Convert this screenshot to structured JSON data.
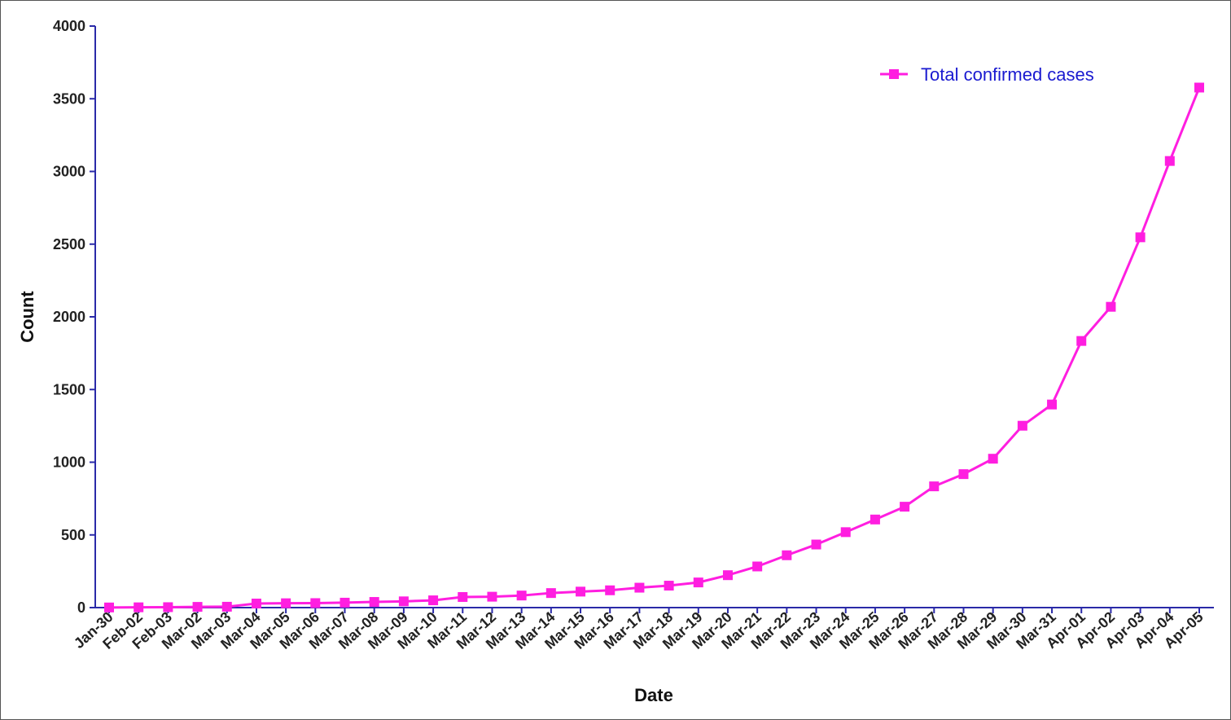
{
  "chart_data": {
    "type": "line",
    "title": "",
    "xlabel": "Date",
    "ylabel": "Count",
    "ylim": [
      0,
      4000
    ],
    "y_ticks": [
      0,
      500,
      1000,
      1500,
      2000,
      2500,
      3000,
      3500,
      4000
    ],
    "grid": false,
    "legend_position": "top-right",
    "axis_color": "#2a2aa8",
    "legend_text_color": "#1a1ad0",
    "categories": [
      "Jan-30",
      "Feb-02",
      "Feb-03",
      "Mar-02",
      "Mar-03",
      "Mar-04",
      "Mar-05",
      "Mar-06",
      "Mar-07",
      "Mar-08",
      "Mar-09",
      "Mar-10",
      "Mar-11",
      "Mar-12",
      "Mar-13",
      "Mar-14",
      "Mar-15",
      "Mar-16",
      "Mar-17",
      "Mar-18",
      "Mar-19",
      "Mar-20",
      "Mar-21",
      "Mar-22",
      "Mar-23",
      "Mar-24",
      "Mar-25",
      "Mar-26",
      "Mar-27",
      "Mar-28",
      "Mar-29",
      "Mar-30",
      "Mar-31",
      "Apr-01",
      "Apr-02",
      "Apr-03",
      "Apr-04",
      "Apr-05"
    ],
    "series": [
      {
        "name": "Total confirmed cases",
        "color": "#ff1ee0",
        "marker": "square",
        "values": [
          1,
          2,
          3,
          5,
          6,
          28,
          30,
          31,
          34,
          39,
          43,
          50,
          73,
          75,
          83,
          100,
          110,
          119,
          137,
          151,
          173,
          223,
          283,
          360,
          434,
          519,
          606,
          694,
          834,
          918,
          1024,
          1251,
          1397,
          1834,
          2069,
          2547,
          3072,
          3577
        ]
      }
    ]
  }
}
